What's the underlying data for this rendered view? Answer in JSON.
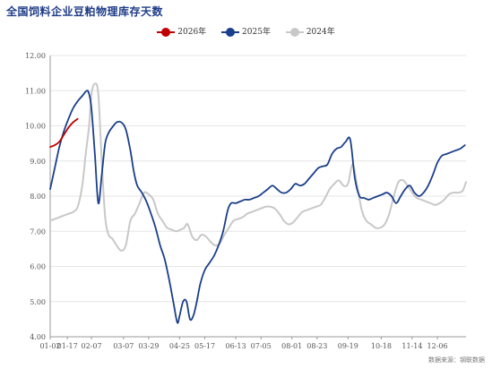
{
  "chart_data": {
    "type": "line",
    "title": "全国饲料企业豆粕物理库存天数",
    "source": "数据来源：钢联数据",
    "ylim": [
      4.0,
      12.0
    ],
    "yticks": [
      "4.00",
      "5.00",
      "6.00",
      "7.00",
      "8.00",
      "9.00",
      "10.00",
      "11.00",
      "12.00"
    ],
    "xticks": [
      "01-02",
      "01-17",
      "02-07",
      "03-07",
      "03-29",
      "04-25",
      "05-17",
      "06-13",
      "07-05",
      "08-01",
      "08-23",
      "09-19",
      "10-18",
      "11-14",
      "12-06"
    ],
    "x_unit": "day-of-year",
    "xtick_days": [
      2,
      17,
      38,
      66,
      88,
      115,
      137,
      164,
      186,
      213,
      235,
      262,
      291,
      318,
      340
    ],
    "x_range_days": [
      2,
      365
    ],
    "grid": "horizontal",
    "legend_position": "top",
    "series": [
      {
        "name": "2026年",
        "color": "#c00000",
        "x": [
          2,
          6,
          10,
          14,
          18,
          22,
          26
        ],
        "y": [
          9.4,
          9.45,
          9.55,
          9.75,
          9.95,
          10.1,
          10.2
        ]
      },
      {
        "name": "2025年",
        "color": "#1a3f8a",
        "x": [
          2,
          6,
          10,
          14,
          18,
          22,
          26,
          30,
          34,
          36,
          38,
          41,
          44,
          47,
          50,
          53,
          56,
          60,
          64,
          68,
          72,
          75,
          78,
          82,
          86,
          90,
          94,
          98,
          102,
          106,
          110,
          113,
          115,
          118,
          121,
          124,
          127,
          130,
          133,
          137,
          141,
          145,
          149,
          153,
          157,
          160,
          164,
          168,
          172,
          176,
          180,
          184,
          188,
          192,
          196,
          200,
          204,
          208,
          212,
          216,
          220,
          224,
          228,
          232,
          236,
          240,
          244,
          248,
          252,
          256,
          260,
          264,
          268,
          272,
          276,
          280,
          284,
          288,
          292,
          296,
          300,
          304,
          308,
          312,
          316,
          320,
          324,
          328,
          332,
          336,
          340,
          344,
          348,
          352,
          356,
          360,
          364
        ],
        "y": [
          8.2,
          8.8,
          9.4,
          9.85,
          10.2,
          10.5,
          10.7,
          10.85,
          11.0,
          10.9,
          10.5,
          9.2,
          7.8,
          8.6,
          9.5,
          9.8,
          9.95,
          10.1,
          10.1,
          9.9,
          9.3,
          8.7,
          8.3,
          8.1,
          7.85,
          7.5,
          7.1,
          6.6,
          6.2,
          5.6,
          4.9,
          4.4,
          4.6,
          5.0,
          5.0,
          4.5,
          4.6,
          5.0,
          5.5,
          5.9,
          6.1,
          6.3,
          6.6,
          7.0,
          7.6,
          7.8,
          7.8,
          7.85,
          7.9,
          7.9,
          7.95,
          8.0,
          8.1,
          8.2,
          8.3,
          8.2,
          8.1,
          8.1,
          8.2,
          8.35,
          8.3,
          8.35,
          8.5,
          8.65,
          8.8,
          8.85,
          8.9,
          9.2,
          9.35,
          9.4,
          9.55,
          9.6,
          8.5,
          8.0,
          7.95,
          7.9,
          7.95,
          8.0,
          8.05,
          8.1,
          8.0,
          7.8,
          8.0,
          8.2,
          8.3,
          8.1,
          8.0,
          8.1,
          8.3,
          8.6,
          8.95,
          9.15,
          9.2,
          9.25,
          9.3,
          9.35,
          9.45
        ]
      },
      {
        "name": "2024年",
        "color": "#c8c8c8",
        "x": [
          2,
          6,
          10,
          14,
          18,
          22,
          26,
          30,
          33,
          36,
          38,
          41,
          44,
          47,
          50,
          53,
          56,
          60,
          64,
          68,
          72,
          76,
          80,
          84,
          88,
          92,
          96,
          100,
          104,
          108,
          112,
          116,
          119,
          122,
          126,
          130,
          134,
          138,
          142,
          146,
          150,
          154,
          158,
          162,
          166,
          170,
          174,
          178,
          182,
          186,
          190,
          194,
          198,
          202,
          206,
          210,
          214,
          218,
          222,
          226,
          230,
          234,
          238,
          242,
          246,
          250,
          254,
          258,
          262,
          266,
          270,
          274,
          278,
          282,
          286,
          290,
          294,
          298,
          302,
          306,
          310,
          314,
          318,
          322,
          326,
          330,
          334,
          338,
          342,
          346,
          350,
          354,
          358,
          362,
          365
        ],
        "y": [
          7.3,
          7.35,
          7.4,
          7.45,
          7.5,
          7.55,
          7.7,
          8.3,
          9.2,
          10.0,
          10.9,
          11.2,
          10.9,
          9.0,
          7.4,
          6.9,
          6.8,
          6.6,
          6.45,
          6.6,
          7.3,
          7.5,
          7.8,
          8.1,
          8.05,
          7.9,
          7.5,
          7.3,
          7.1,
          7.05,
          7.0,
          7.05,
          7.1,
          7.2,
          6.85,
          6.75,
          6.9,
          6.85,
          6.7,
          6.6,
          6.65,
          6.9,
          7.1,
          7.3,
          7.35,
          7.4,
          7.5,
          7.55,
          7.6,
          7.65,
          7.7,
          7.7,
          7.65,
          7.5,
          7.3,
          7.2,
          7.25,
          7.4,
          7.55,
          7.6,
          7.65,
          7.7,
          7.75,
          7.95,
          8.2,
          8.35,
          8.45,
          8.3,
          8.35,
          8.9,
          8.3,
          7.6,
          7.3,
          7.2,
          7.1,
          7.1,
          7.2,
          7.5,
          8.0,
          8.4,
          8.45,
          8.3,
          8.1,
          7.95,
          7.9,
          7.85,
          7.8,
          7.75,
          7.8,
          7.9,
          8.05,
          8.1,
          8.1,
          8.15,
          8.4
        ]
      }
    ]
  }
}
